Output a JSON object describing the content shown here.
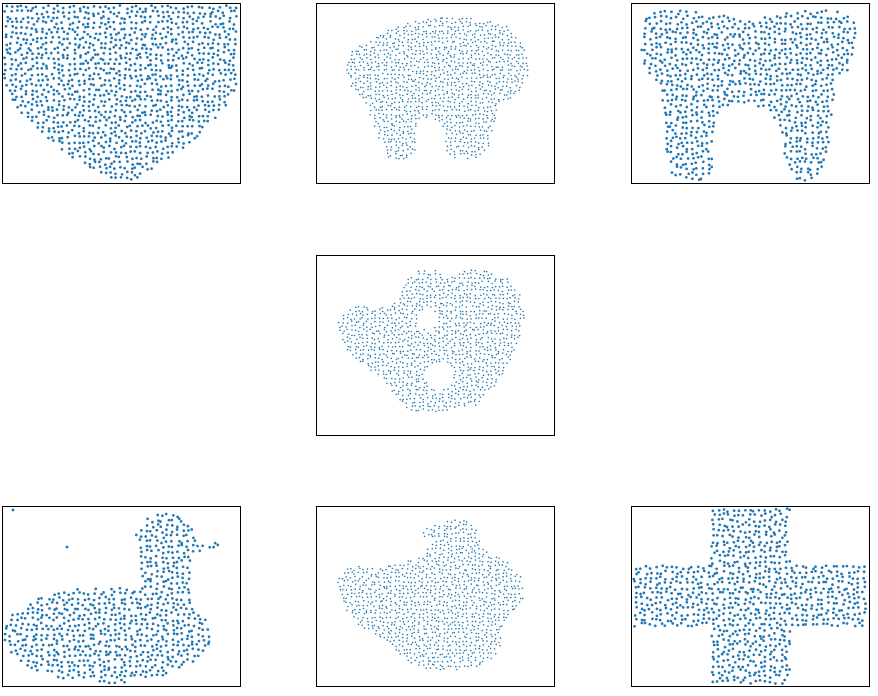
{
  "colors": {
    "point": "#1f77b4",
    "frame": "#000000",
    "background": "#ffffff"
  },
  "chart_data": [
    {
      "type": "scatter",
      "shape": "heart",
      "marker": "large",
      "axes": "hidden",
      "grid": false,
      "legend": "none",
      "xlim": [
        0,
        1
      ],
      "ylim": [
        0,
        1
      ]
    },
    {
      "type": "scatter",
      "shape": "blob-with-arch",
      "marker": "small",
      "axes": "hidden",
      "grid": false,
      "legend": "none",
      "xlim": [
        0,
        1
      ],
      "ylim": [
        0,
        1
      ]
    },
    {
      "type": "scatter",
      "shape": "tooth",
      "marker": "large",
      "axes": "hidden",
      "grid": false,
      "legend": "none",
      "xlim": [
        0,
        1
      ],
      "ylim": [
        0,
        1
      ]
    },
    {
      "type": "scatter",
      "shape": "blob-with-holes",
      "marker": "small",
      "axes": "hidden",
      "grid": false,
      "legend": "none",
      "xlim": [
        0,
        1
      ],
      "ylim": [
        0,
        1
      ]
    },
    {
      "type": "scatter",
      "shape": "duck",
      "marker": "large",
      "axes": "hidden",
      "grid": false,
      "legend": "none",
      "xlim": [
        0,
        1
      ],
      "ylim": [
        0,
        1
      ]
    },
    {
      "type": "scatter",
      "shape": "rabbit",
      "marker": "small",
      "axes": "hidden",
      "grid": false,
      "legend": "none",
      "xlim": [
        0,
        1
      ],
      "ylim": [
        0,
        1
      ]
    },
    {
      "type": "scatter",
      "shape": "cross",
      "marker": "large",
      "axes": "hidden",
      "grid": false,
      "legend": "none",
      "xlim": [
        0,
        1
      ],
      "ylim": [
        0,
        1
      ]
    }
  ]
}
